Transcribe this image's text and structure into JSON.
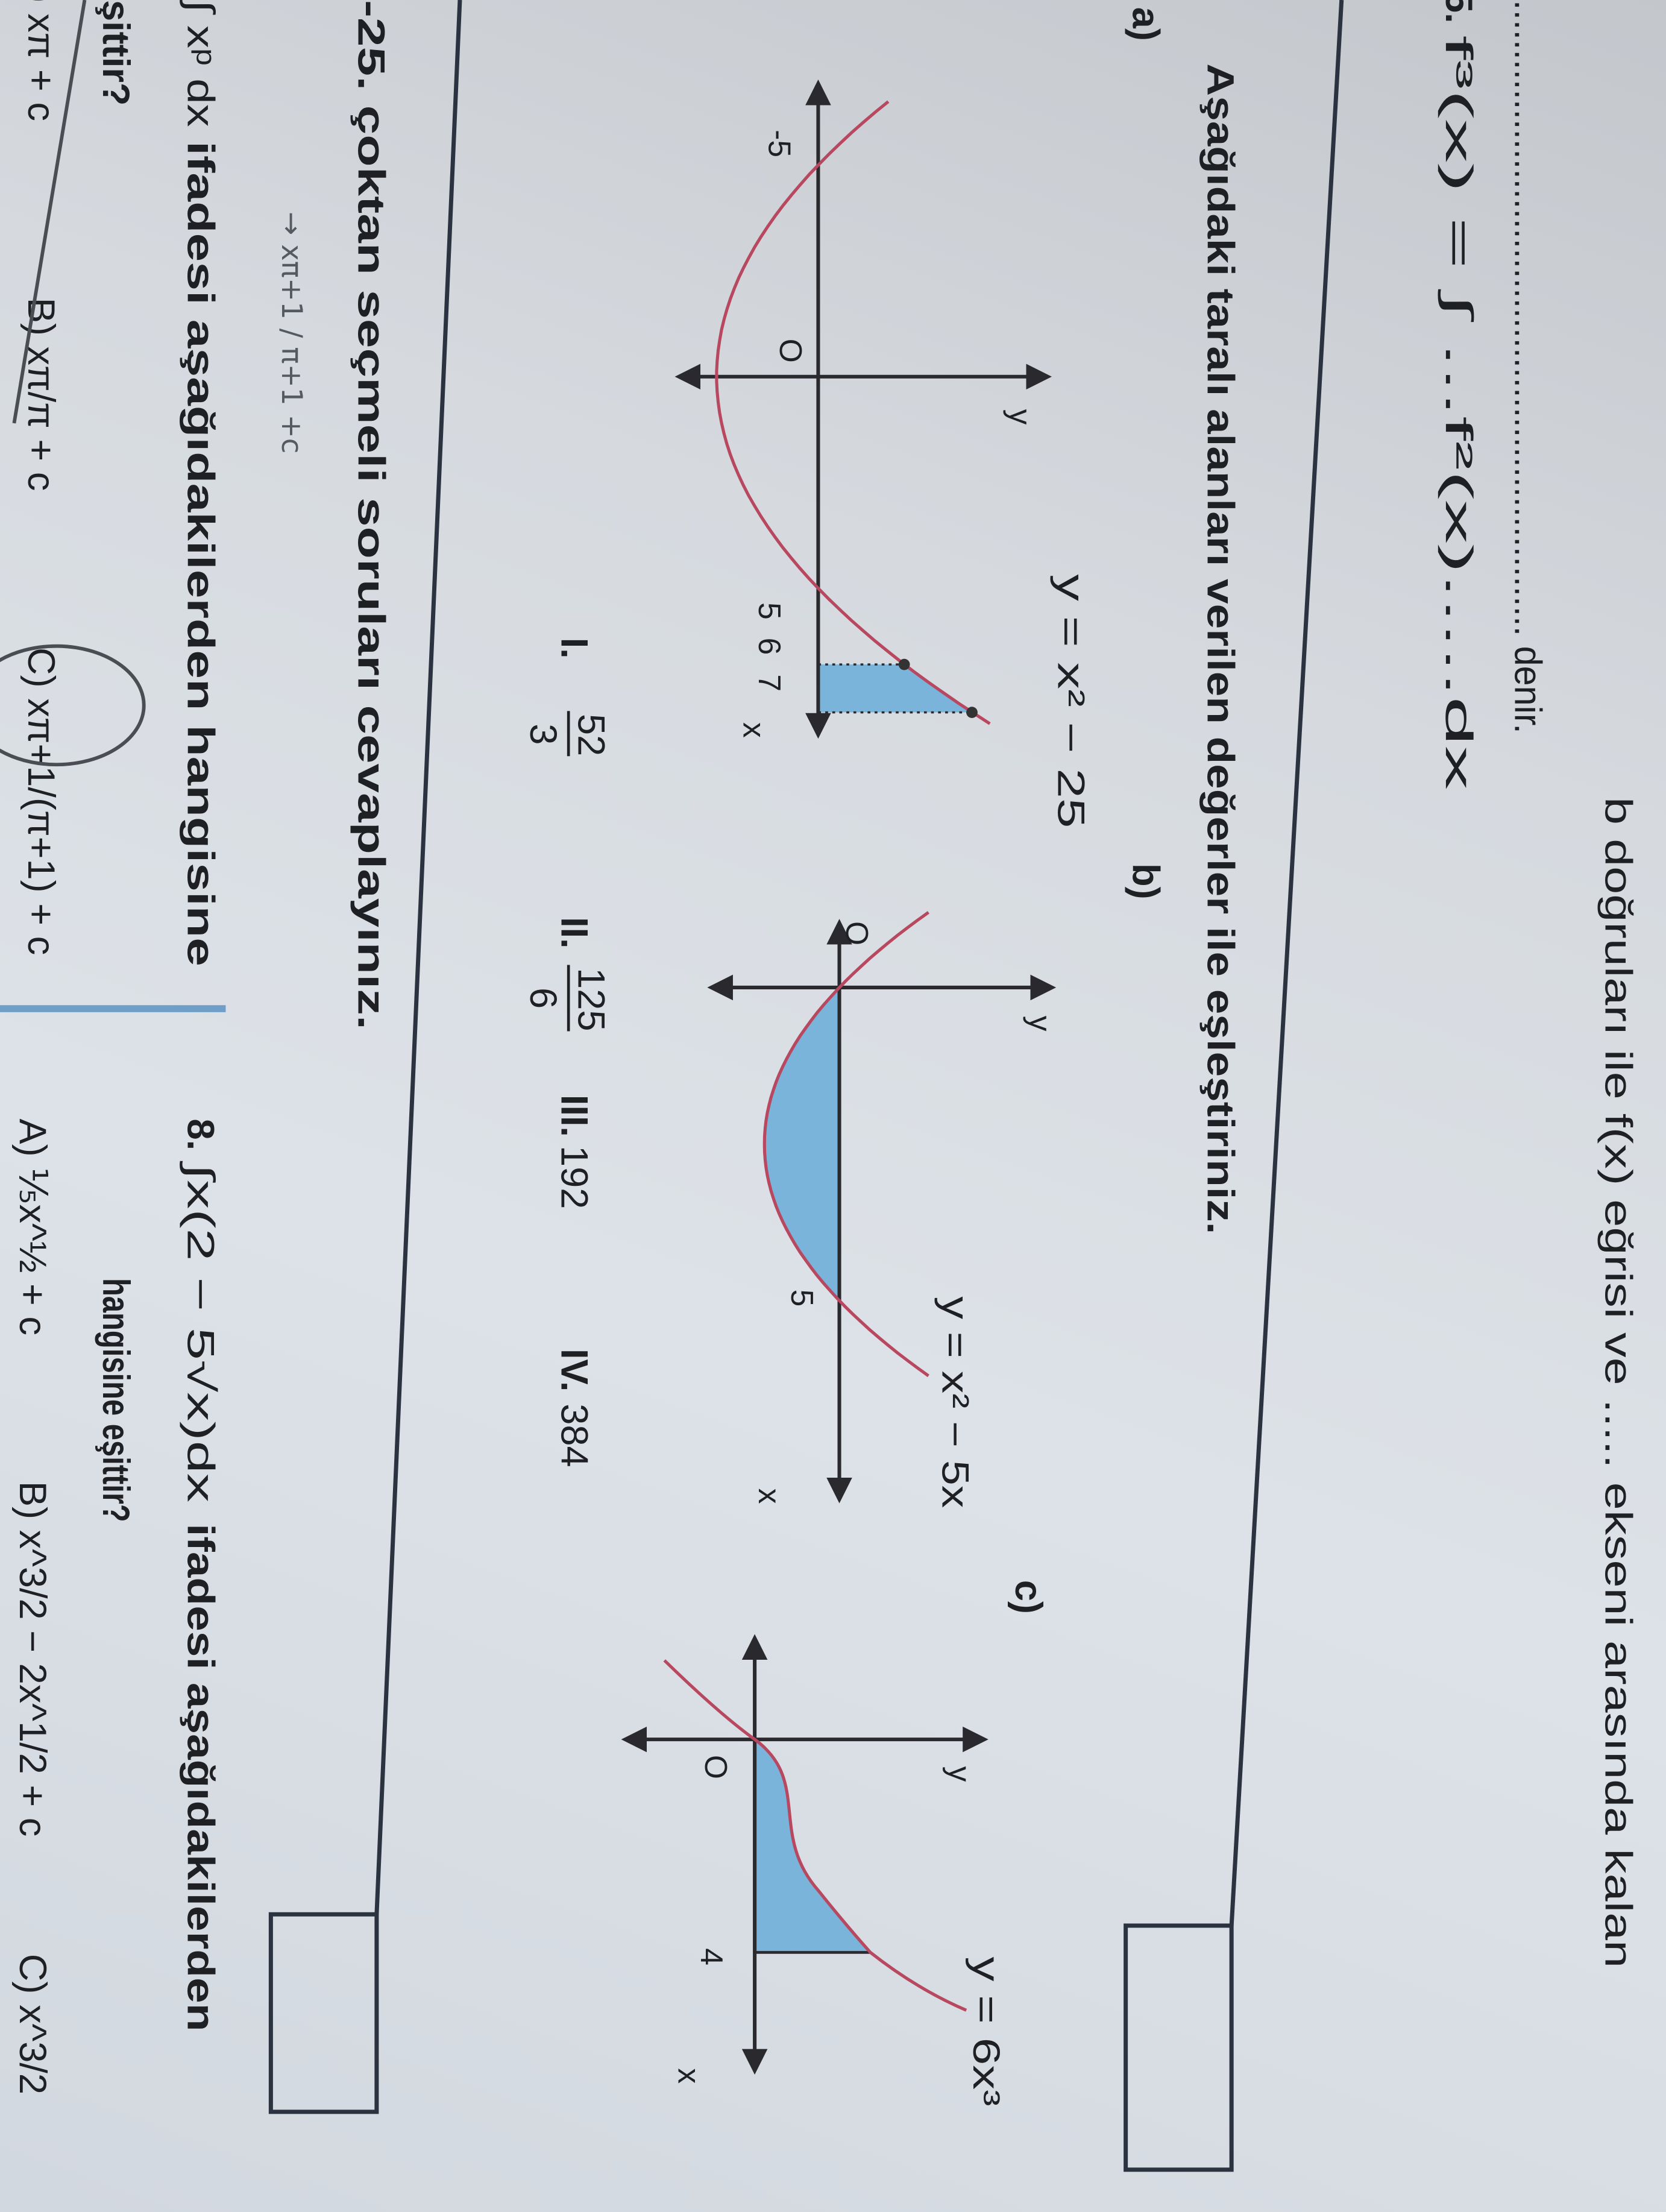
{
  "top": {
    "line1": "b doğruları ile  f(x)  eğrisi ve ..... ekseni arasında kalan",
    "line2": "................................................................ denir.",
    "q5_number": "5.",
    "q5_formula": "f³(x) = ∫ ...f²(x).....dx"
  },
  "matching": {
    "instruction": "Aşağıdaki taralı alanları verilen değerler ile eşleştiriniz.",
    "graphs": [
      {
        "label": "a)",
        "equation": "y = x² − 25",
        "y_axis": "y",
        "x_axis": "x",
        "origin": "O",
        "ticks": [
          "-5",
          "5",
          "6",
          "7"
        ]
      },
      {
        "label": "b)",
        "equation": "y = x² − 5x",
        "y_axis": "y",
        "x_axis": "x",
        "origin": "O",
        "ticks": [
          "5"
        ]
      },
      {
        "label": "c)",
        "equation": "y = 6x³",
        "y_axis": "y",
        "x_axis": "x",
        "origin": "O",
        "ticks": [
          "4"
        ]
      }
    ],
    "values": [
      {
        "roman": "I.",
        "numerator": "52",
        "denominator": "3"
      },
      {
        "roman": "II.",
        "numerator": "125",
        "denominator": "6"
      },
      {
        "roman": "III.",
        "value": "192"
      },
      {
        "roman": "IV.",
        "value": "384"
      }
    ],
    "colors": {
      "curve": "#b8485f",
      "shade": "#7ab4da"
    }
  },
  "section": {
    "title": "-25. çoktan seçmeli soruları cevaplayınız."
  },
  "q7": {
    "integral": "∫ xᵖ dx",
    "prompt": "ifadesi aşağıdakilerden hangisine",
    "prompt_end": "şittir?",
    "options": [
      "A)  xπ + c",
      "B)  xπ/π + c",
      "C)  xπ+1/(π+1) + c"
    ],
    "handwriting": "→ xπ+1 / π+1  +c"
  },
  "q8": {
    "number": "8.",
    "integral": "∫x(2 − 5√x)dx",
    "prompt": "ifadesi aşağıdakilerden",
    "prompt_end": "hangisine eşittir?",
    "options": [
      "A)  ⅕x^½ + c",
      "B)  x^3/2 − 2x^1/2 + c",
      "C)  x^3/2"
    ]
  }
}
